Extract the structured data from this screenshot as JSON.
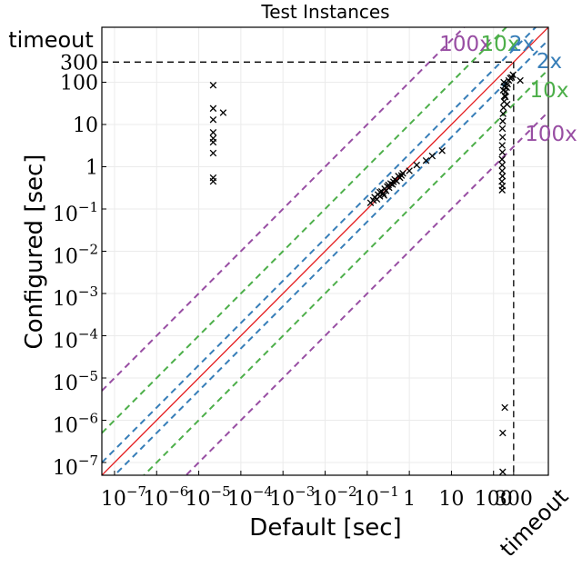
{
  "chart_data": {
    "type": "scatter",
    "title": "Test Instances",
    "xlabel": "Default [sec]",
    "ylabel": "Configured [sec]",
    "x_scale": "log",
    "y_scale": "log",
    "xlim": [
      5e-08,
      2000
    ],
    "ylim": [
      5e-08,
      2000
    ],
    "timeout_value": 300,
    "timeout_label": "timeout",
    "x_ticks": [
      {
        "base": "10",
        "exp": "−7"
      },
      {
        "base": "10",
        "exp": "−6"
      },
      {
        "base": "10",
        "exp": "−5"
      },
      {
        "base": "10",
        "exp": "−4"
      },
      {
        "base": "10",
        "exp": "−3"
      },
      {
        "base": "10",
        "exp": "−2"
      },
      {
        "base": "10",
        "exp": "−1"
      },
      {
        "base": "1",
        "exp": ""
      },
      {
        "base": "10",
        "exp": ""
      },
      {
        "base": "100",
        "exp": ""
      },
      {
        "base": "300",
        "exp": ""
      }
    ],
    "y_ticks": [
      {
        "base": "10",
        "exp": "−7"
      },
      {
        "base": "10",
        "exp": "−6"
      },
      {
        "base": "10",
        "exp": "−5"
      },
      {
        "base": "10",
        "exp": "−4"
      },
      {
        "base": "10",
        "exp": "−3"
      },
      {
        "base": "10",
        "exp": "−2"
      },
      {
        "base": "10",
        "exp": "−1"
      },
      {
        "base": "1",
        "exp": ""
      },
      {
        "base": "10",
        "exp": ""
      },
      {
        "base": "100",
        "exp": ""
      },
      {
        "base": "300",
        "exp": ""
      }
    ],
    "reference_lines": [
      {
        "label": "100x",
        "factor": 100,
        "color": "#984ea3"
      },
      {
        "label": "10x",
        "factor": 10,
        "color": "#4daf4a"
      },
      {
        "label": "2x",
        "factor": 2,
        "color": "#377eb8"
      },
      {
        "label": "",
        "factor": 1,
        "color": "#e41a1c"
      }
    ],
    "grid": true,
    "points": [
      {
        "x": 2.2e-05,
        "y": 85
      },
      {
        "x": 2.2e-05,
        "y": 24
      },
      {
        "x": 2.2e-05,
        "y": 13
      },
      {
        "x": 2.2e-05,
        "y": 6.5
      },
      {
        "x": 2.2e-05,
        "y": 4.7
      },
      {
        "x": 2.2e-05,
        "y": 3.8
      },
      {
        "x": 2.2e-05,
        "y": 2.1
      },
      {
        "x": 2.2e-05,
        "y": 0.55
      },
      {
        "x": 2.2e-05,
        "y": 0.45
      },
      {
        "x": 3.8e-05,
        "y": 19
      },
      {
        "x": 0.12,
        "y": 0.14
      },
      {
        "x": 0.14,
        "y": 0.16
      },
      {
        "x": 0.15,
        "y": 0.19
      },
      {
        "x": 0.17,
        "y": 0.17
      },
      {
        "x": 0.18,
        "y": 0.22
      },
      {
        "x": 0.2,
        "y": 0.2
      },
      {
        "x": 0.22,
        "y": 0.26
      },
      {
        "x": 0.24,
        "y": 0.23
      },
      {
        "x": 0.26,
        "y": 0.3
      },
      {
        "x": 0.28,
        "y": 0.27
      },
      {
        "x": 0.3,
        "y": 0.34
      },
      {
        "x": 0.33,
        "y": 0.32
      },
      {
        "x": 0.36,
        "y": 0.4
      },
      {
        "x": 0.4,
        "y": 0.38
      },
      {
        "x": 0.45,
        "y": 0.5
      },
      {
        "x": 0.5,
        "y": 0.46
      },
      {
        "x": 0.55,
        "y": 0.6
      },
      {
        "x": 0.6,
        "y": 0.55
      },
      {
        "x": 0.7,
        "y": 0.7
      },
      {
        "x": 0.2,
        "y": 0.25
      },
      {
        "x": 0.25,
        "y": 0.21
      },
      {
        "x": 0.32,
        "y": 0.37
      },
      {
        "x": 0.42,
        "y": 0.44
      },
      {
        "x": 0.65,
        "y": 0.62
      },
      {
        "x": 1.0,
        "y": 0.8
      },
      {
        "x": 1.5,
        "y": 1.1
      },
      {
        "x": 2.5,
        "y": 1.4
      },
      {
        "x": 3.5,
        "y": 1.8
      },
      {
        "x": 6,
        "y": 2.4
      },
      {
        "x": 160,
        "y": 0.28
      },
      {
        "x": 162,
        "y": 0.35
      },
      {
        "x": 158,
        "y": 0.45
      },
      {
        "x": 163,
        "y": 0.6
      },
      {
        "x": 160,
        "y": 0.8
      },
      {
        "x": 161,
        "y": 1.1
      },
      {
        "x": 159,
        "y": 1.5
      },
      {
        "x": 162,
        "y": 2.2
      },
      {
        "x": 160,
        "y": 3.2
      },
      {
        "x": 164,
        "y": 5
      },
      {
        "x": 162,
        "y": 8
      },
      {
        "x": 165,
        "y": 12
      },
      {
        "x": 168,
        "y": 18
      },
      {
        "x": 172,
        "y": 25
      },
      {
        "x": 178,
        "y": 35
      },
      {
        "x": 185,
        "y": 48
      },
      {
        "x": 195,
        "y": 60
      },
      {
        "x": 205,
        "y": 75
      },
      {
        "x": 215,
        "y": 90
      },
      {
        "x": 230,
        "y": 110
      },
      {
        "x": 250,
        "y": 125
      },
      {
        "x": 180,
        "y": 80
      },
      {
        "x": 190,
        "y": 45
      },
      {
        "x": 175,
        "y": 100
      },
      {
        "x": 270,
        "y": 130
      },
      {
        "x": 290,
        "y": 150
      },
      {
        "x": 430,
        "y": 110
      },
      {
        "x": 210,
        "y": 30
      },
      {
        "x": 170,
        "y": 65
      },
      {
        "x": 165,
        "y": 5e-07
      },
      {
        "x": 185,
        "y": 2e-06
      },
      {
        "x": 165,
        "y": 6e-08
      }
    ]
  }
}
